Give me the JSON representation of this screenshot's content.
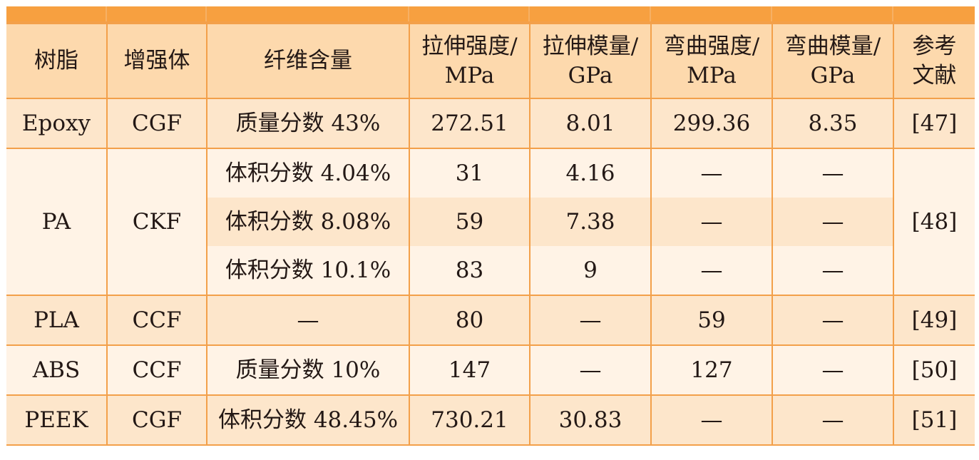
{
  "table": {
    "headers": [
      {
        "line1": "树脂",
        "line2": ""
      },
      {
        "line1": "增强体",
        "line2": ""
      },
      {
        "line1": "纤维含量",
        "line2": ""
      },
      {
        "line1": "拉伸强度/",
        "line2": "MPa"
      },
      {
        "line1": "拉伸模量/",
        "line2": "GPa"
      },
      {
        "line1": "弯曲强度/",
        "line2": "MPa"
      },
      {
        "line1": "弯曲模量/",
        "line2": "GPa"
      },
      {
        "line1": "参考",
        "line2": "文献"
      }
    ],
    "rows": {
      "epoxy": {
        "resin": "Epoxy",
        "reinforcement": "CGF",
        "fiber_content": "质量分数 43%",
        "tensile_strength": "272.51",
        "tensile_modulus": "8.01",
        "flexural_strength": "299.36",
        "flexural_modulus": "8.35",
        "ref": "[47]"
      },
      "pa": {
        "resin": "PA",
        "reinforcement": "CKF",
        "ref": "[48]",
        "sub": [
          {
            "fiber_content": "体积分数 4.04%",
            "tensile_strength": "31",
            "tensile_modulus": "4.16",
            "flexural_strength": "—",
            "flexural_modulus": "—"
          },
          {
            "fiber_content": "体积分数 8.08%",
            "tensile_strength": "59",
            "tensile_modulus": "7.38",
            "flexural_strength": "—",
            "flexural_modulus": "—"
          },
          {
            "fiber_content": "体积分数 10.1%",
            "tensile_strength": "83",
            "tensile_modulus": "9",
            "flexural_strength": "—",
            "flexural_modulus": "—"
          }
        ]
      },
      "pla": {
        "resin": "PLA",
        "reinforcement": "CCF",
        "fiber_content": "—",
        "tensile_strength": "80",
        "tensile_modulus": "—",
        "flexural_strength": "59",
        "flexural_modulus": "—",
        "ref": "[49]"
      },
      "abs": {
        "resin": "ABS",
        "reinforcement": "CCF",
        "fiber_content": "质量分数 10%",
        "tensile_strength": "147",
        "tensile_modulus": "—",
        "flexural_strength": "127",
        "flexural_modulus": "—",
        "ref": "[50]"
      },
      "peek": {
        "resin": "PEEK",
        "reinforcement": "CGF",
        "fiber_content": "体积分数 48.45%",
        "tensile_strength": "730.21",
        "tensile_modulus": "30.83",
        "flexural_strength": "—",
        "flexural_modulus": "—",
        "ref": "[51]"
      }
    }
  },
  "colors": {
    "top_bar": "#f7a040",
    "grid_line": "#f3a04a",
    "header_bg": "#fdd9ad",
    "row_dark": "#fde6cb",
    "row_light": "#fff3e6"
  }
}
